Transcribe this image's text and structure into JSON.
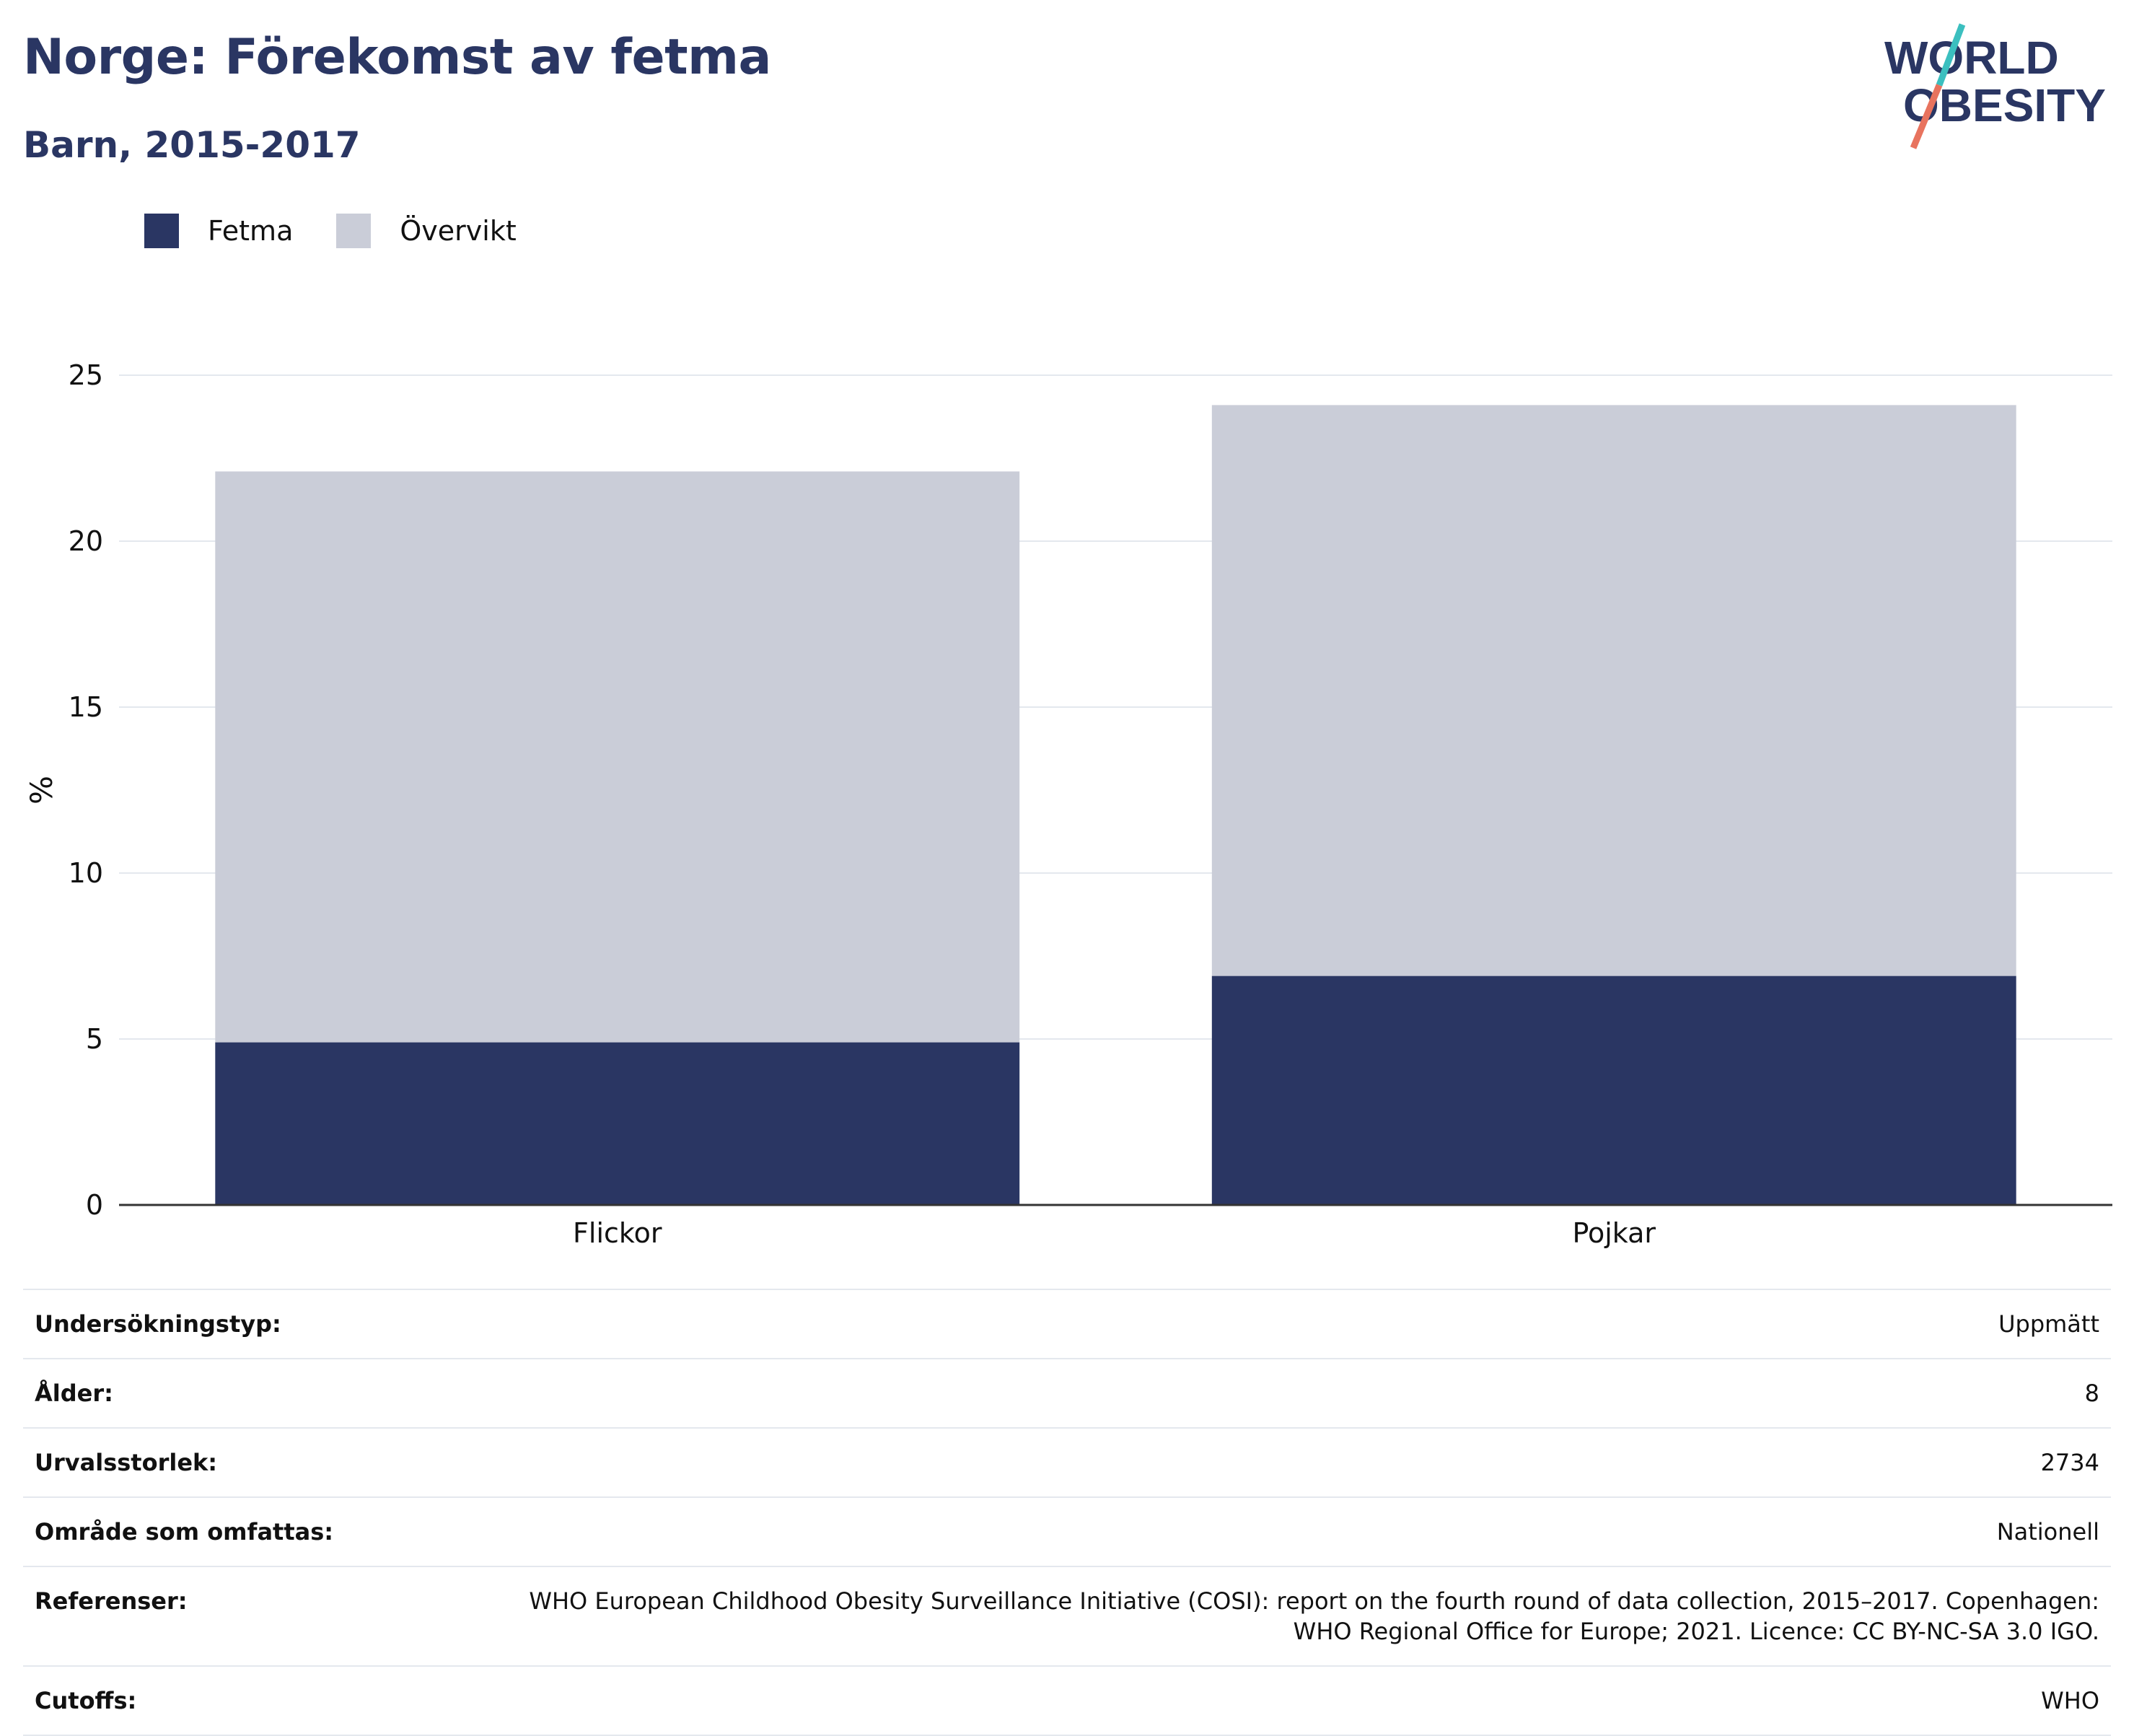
{
  "header": {
    "title": "Norge: Förekomst av fetma",
    "subtitle": "Barn, 2015-2017"
  },
  "logo": {
    "line1": "WORLD",
    "line2": "OBESITY",
    "colors": {
      "text": "#2a3663",
      "slash_top": "#3bbfbf",
      "slash_bottom": "#e8735e"
    }
  },
  "colors": {
    "fetma": "#2a3663",
    "overvikt": "#cacdd8",
    "grid": "#e4e8ee",
    "axis": "#333333"
  },
  "chart_data": {
    "type": "bar",
    "stacked": true,
    "categories": [
      "Flickor",
      "Pojkar"
    ],
    "series": [
      {
        "name": "Fetma",
        "values": [
          4.9,
          6.9
        ]
      },
      {
        "name": "Övervikt",
        "values": [
          17.2,
          17.2
        ]
      }
    ],
    "ylabel": "%",
    "xlabel": "",
    "ylim": [
      0,
      25
    ],
    "yticks": [
      0,
      5,
      10,
      15,
      20,
      25
    ],
    "grid": true,
    "legend": "top-left"
  },
  "meta": {
    "rows": [
      {
        "key": "Undersökningstyp:",
        "value": "Uppmätt"
      },
      {
        "key": "Ålder:",
        "value": "8"
      },
      {
        "key": "Urvalsstorlek:",
        "value": "2734"
      },
      {
        "key": "Område som omfattas:",
        "value": "Nationell"
      },
      {
        "key": "Referenser:",
        "value_lines": [
          "WHO European Childhood Obesity Surveillance Initiative (COSI): report on the fourth round of data collection, 2015–2017. Copenhagen:",
          "WHO Regional Office for Europe; 2021. Licence: CC BY-NC-SA 3.0 IGO."
        ]
      },
      {
        "key": "Cutoffs:",
        "value": "WHO"
      }
    ]
  }
}
